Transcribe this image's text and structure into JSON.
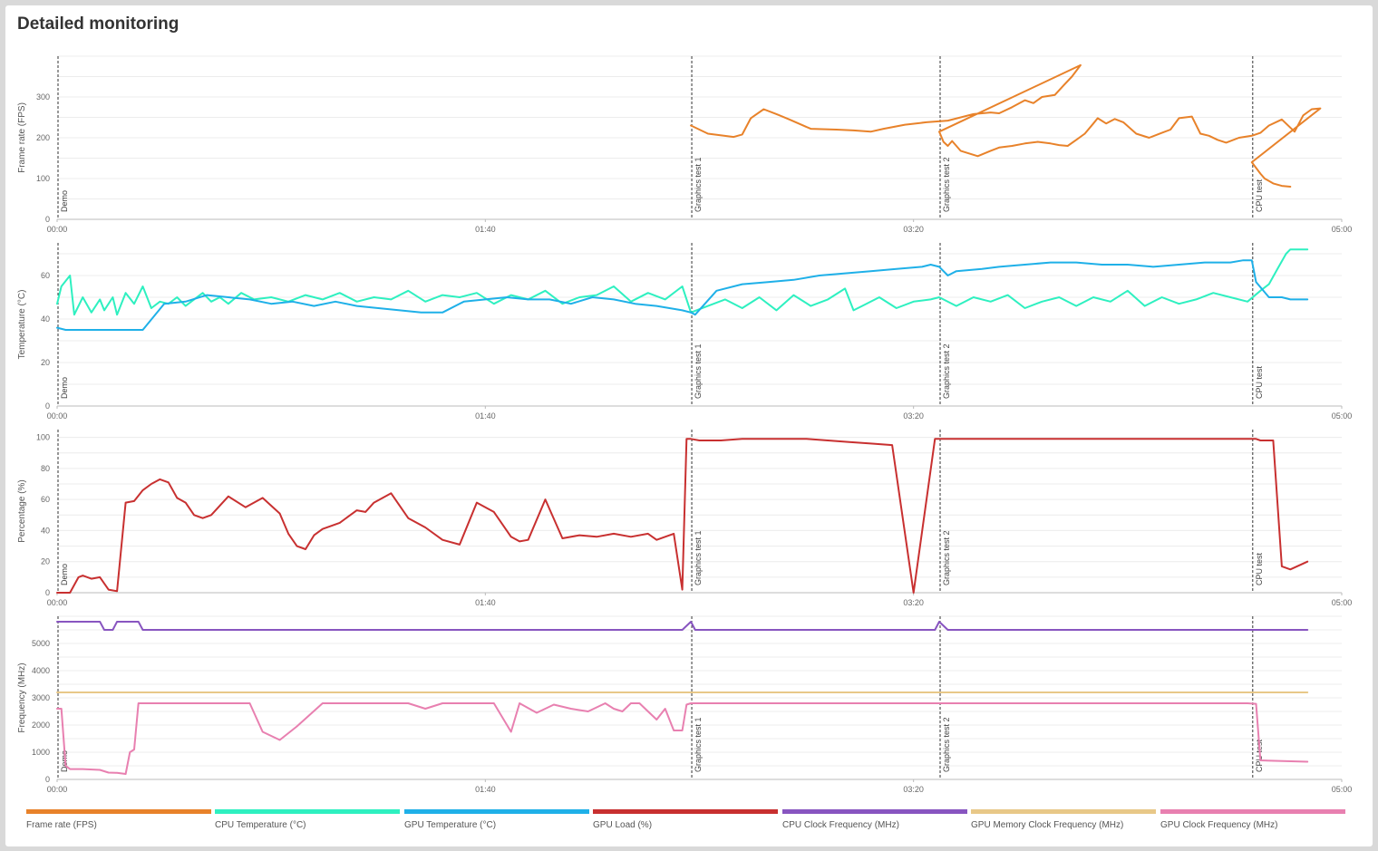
{
  "header": {
    "title": "Detailed monitoring"
  },
  "x_ticks": [
    "00:00",
    "01:40",
    "03:20",
    "05:00"
  ],
  "x_range_seconds": [
    0,
    300
  ],
  "markers": [
    {
      "label": "Demo",
      "time": "00:00"
    },
    {
      "label": "Graphics test 1",
      "time": "02:28"
    },
    {
      "label": "Graphics test 2",
      "time": "03:26"
    },
    {
      "label": "CPU test",
      "time": "04:39"
    }
  ],
  "legend": [
    {
      "label": "Frame rate (FPS)",
      "color": "#e8822a"
    },
    {
      "label": "CPU Temperature (°C)",
      "color": "#2ef0c0"
    },
    {
      "label": "GPU Temperature (°C)",
      "color": "#1fb0e8"
    },
    {
      "label": "GPU Load (%)",
      "color": "#c83030"
    },
    {
      "label": "CPU Clock Frequency (MHz)",
      "color": "#8855c0"
    },
    {
      "label": "GPU Memory Clock Frequency (MHz)",
      "color": "#e8c888"
    },
    {
      "label": "GPU Clock Frequency (MHz)",
      "color": "#e880b0"
    }
  ],
  "chart_data": [
    {
      "type": "line",
      "ylabel": "Frame rate (FPS)",
      "ylim": [
        0,
        400
      ],
      "yticks": [
        0,
        100,
        200,
        300
      ],
      "series": [
        {
          "name": "Frame rate (FPS)",
          "color": "#e8822a",
          "x": [
            148,
            152,
            158,
            160,
            162,
            165,
            168,
            171,
            176,
            182,
            186,
            190,
            193,
            198,
            203,
            208,
            214,
            218,
            220,
            223,
            226,
            228,
            230,
            233,
            235,
            237,
            239,
            206,
            207,
            208,
            209,
            211,
            215,
            218,
            220,
            223,
            226,
            229,
            232,
            234,
            236,
            238,
            240,
            242,
            243,
            245,
            247,
            249,
            252,
            255,
            258,
            260,
            262,
            265,
            267,
            269,
            271,
            273,
            276,
            279,
            281,
            283,
            286,
            289,
            291,
            293,
            295,
            279,
            281,
            282,
            284,
            286,
            288
          ],
          "y": [
            230,
            210,
            202,
            208,
            248,
            270,
            258,
            245,
            222,
            220,
            218,
            215,
            222,
            232,
            238,
            242,
            258,
            262,
            260,
            275,
            292,
            285,
            300,
            305,
            328,
            350,
            378,
            215,
            190,
            180,
            192,
            168,
            155,
            168,
            176,
            180,
            186,
            190,
            186,
            182,
            180,
            195,
            210,
            235,
            248,
            235,
            246,
            238,
            210,
            200,
            212,
            220,
            248,
            252,
            210,
            205,
            195,
            188,
            200,
            205,
            212,
            230,
            245,
            215,
            255,
            270,
            272,
            140,
            112,
            100,
            88,
            82,
            80
          ]
        }
      ]
    },
    {
      "type": "line",
      "ylabel": "Temperature (°C)",
      "ylim": [
        0,
        75
      ],
      "yticks": [
        0,
        20,
        40,
        60
      ],
      "series": [
        {
          "name": "CPU Temperature (°C)",
          "color": "#2ef0c0",
          "x": [
            0,
            1,
            3,
            4,
            6,
            8,
            10,
            11,
            13,
            14,
            16,
            18,
            20,
            22,
            24,
            26,
            28,
            30,
            32,
            34,
            36,
            38,
            40,
            43,
            46,
            50,
            54,
            58,
            62,
            66,
            70,
            74,
            78,
            82,
            86,
            90,
            94,
            98,
            102,
            106,
            110,
            114,
            118,
            122,
            126,
            130,
            134,
            138,
            142,
            146,
            148,
            152,
            156,
            160,
            164,
            168,
            172,
            176,
            180,
            184,
            186,
            188,
            192,
            196,
            200,
            204,
            206,
            210,
            214,
            218,
            222,
            226,
            230,
            234,
            238,
            242,
            246,
            250,
            254,
            258,
            262,
            266,
            270,
            274,
            278,
            281,
            283,
            285,
            287,
            288,
            290,
            292
          ],
          "y": [
            47,
            55,
            60,
            42,
            50,
            43,
            49,
            44,
            50,
            42,
            52,
            47,
            55,
            45,
            48,
            47,
            50,
            46,
            49,
            52,
            48,
            50,
            47,
            52,
            49,
            50,
            48,
            51,
            49,
            52,
            48,
            50,
            49,
            53,
            48,
            51,
            50,
            52,
            47,
            51,
            49,
            53,
            47,
            50,
            51,
            55,
            48,
            52,
            49,
            55,
            43,
            46,
            49,
            45,
            50,
            44,
            51,
            46,
            49,
            54,
            44,
            46,
            50,
            45,
            48,
            49,
            50,
            46,
            50,
            48,
            51,
            45,
            48,
            50,
            46,
            50,
            48,
            53,
            46,
            50,
            47,
            49,
            52,
            50,
            48,
            53,
            56,
            63,
            70,
            72,
            72,
            72
          ]
        },
        {
          "name": "GPU Temperature (°C)",
          "color": "#1fb0e8",
          "x": [
            0,
            2,
            19,
            20,
            25,
            30,
            35,
            40,
            45,
            50,
            55,
            60,
            65,
            70,
            75,
            80,
            85,
            90,
            95,
            100,
            105,
            110,
            115,
            120,
            125,
            130,
            135,
            140,
            146,
            148,
            149,
            154,
            160,
            166,
            172,
            178,
            184,
            190,
            196,
            202,
            204,
            206,
            208,
            210,
            216,
            220,
            226,
            232,
            238,
            244,
            250,
            256,
            262,
            268,
            274,
            277,
            279,
            280,
            283,
            286,
            288,
            292
          ],
          "y": [
            36,
            35,
            35,
            35,
            47,
            48,
            51,
            50,
            49,
            47,
            48,
            46,
            48,
            46,
            45,
            44,
            43,
            43,
            48,
            49,
            50,
            49,
            49,
            47,
            50,
            49,
            47,
            46,
            44,
            43,
            42,
            53,
            56,
            57,
            58,
            60,
            61,
            62,
            63,
            64,
            65,
            64,
            60,
            62,
            63,
            64,
            65,
            66,
            66,
            65,
            65,
            64,
            65,
            66,
            66,
            67,
            67,
            57,
            50,
            50,
            49,
            49
          ]
        }
      ]
    },
    {
      "type": "line",
      "ylabel": "Percentage (%)",
      "ylim": [
        0,
        105
      ],
      "yticks": [
        0,
        20,
        40,
        60,
        80,
        100
      ],
      "series": [
        {
          "name": "GPU Load (%)",
          "color": "#c83030",
          "x": [
            0,
            3,
            5,
            6,
            8,
            10,
            12,
            14,
            16,
            18,
            20,
            22,
            24,
            26,
            28,
            30,
            32,
            34,
            36,
            40,
            44,
            48,
            52,
            54,
            56,
            58,
            60,
            62,
            66,
            70,
            72,
            74,
            78,
            82,
            86,
            90,
            94,
            98,
            102,
            106,
            108,
            110,
            114,
            118,
            122,
            126,
            130,
            134,
            138,
            140,
            142,
            144,
            146,
            147,
            148,
            150,
            155,
            160,
            165,
            170,
            175,
            180,
            185,
            190,
            195,
            200,
            205,
            208,
            209,
            210,
            211,
            212,
            215,
            220,
            230,
            240,
            250,
            260,
            265,
            270,
            275,
            278,
            279,
            280,
            281,
            284,
            286,
            288,
            292
          ],
          "y": [
            0,
            0,
            10,
            11,
            9,
            10,
            2,
            1,
            58,
            59,
            66,
            70,
            73,
            71,
            61,
            58,
            50,
            48,
            50,
            62,
            55,
            61,
            51,
            38,
            30,
            28,
            37,
            41,
            45,
            53,
            52,
            58,
            64,
            48,
            42,
            34,
            31,
            58,
            52,
            36,
            33,
            34,
            60,
            35,
            37,
            36,
            38,
            36,
            38,
            34,
            36,
            38,
            2,
            99,
            99,
            98,
            98,
            99,
            99,
            99,
            99,
            98,
            97,
            96,
            95,
            0,
            99,
            99,
            99,
            99,
            99,
            99,
            99,
            99,
            99,
            99,
            99,
            99,
            99,
            99,
            99,
            99,
            99,
            99,
            98,
            98,
            17,
            15,
            20
          ]
        }
      ]
    },
    {
      "type": "line",
      "ylabel": "Frequency (MHz)",
      "ylim": [
        0,
        6000
      ],
      "yticks": [
        0,
        1000,
        2000,
        3000,
        4000,
        5000
      ],
      "series": [
        {
          "name": "CPU Clock Frequency (MHz)",
          "color": "#8855c0",
          "x": [
            0,
            10,
            11,
            13,
            14,
            19,
            20,
            146,
            148,
            149,
            150,
            205,
            206,
            208,
            292
          ],
          "y": [
            5800,
            5800,
            5500,
            5500,
            5800,
            5800,
            5500,
            5500,
            5800,
            5500,
            5500,
            5500,
            5800,
            5500,
            5500
          ]
        },
        {
          "name": "GPU Memory Clock Frequency (MHz)",
          "color": "#e8c888",
          "x": [
            0,
            292
          ],
          "y": [
            3200,
            3200
          ]
        },
        {
          "name": "GPU Clock Frequency (MHz)",
          "color": "#e880b0",
          "x": [
            0,
            1,
            2,
            3,
            6,
            10,
            12,
            14,
            16,
            17,
            18,
            19,
            20,
            22,
            26,
            30,
            34,
            38,
            42,
            45,
            48,
            52,
            56,
            62,
            66,
            70,
            74,
            78,
            82,
            86,
            90,
            94,
            98,
            102,
            106,
            108,
            112,
            116,
            120,
            124,
            128,
            130,
            132,
            134,
            136,
            138,
            140,
            142,
            144,
            146,
            147,
            148,
            150,
            160,
            180,
            200,
            220,
            240,
            260,
            278,
            280,
            281,
            292
          ],
          "y": [
            2600,
            2600,
            500,
            380,
            380,
            350,
            250,
            240,
            200,
            1000,
            1100,
            2800,
            2800,
            2800,
            2800,
            2800,
            2800,
            2800,
            2800,
            2800,
            1750,
            1450,
            1950,
            2800,
            2800,
            2800,
            2800,
            2800,
            2800,
            2600,
            2800,
            2800,
            2800,
            2800,
            1750,
            2800,
            2450,
            2750,
            2600,
            2500,
            2800,
            2600,
            2500,
            2800,
            2800,
            2500,
            2200,
            2600,
            1800,
            1800,
            2750,
            2800,
            2800,
            2800,
            2800,
            2800,
            2800,
            2800,
            2800,
            2800,
            2780,
            700,
            650
          ]
        }
      ]
    }
  ]
}
